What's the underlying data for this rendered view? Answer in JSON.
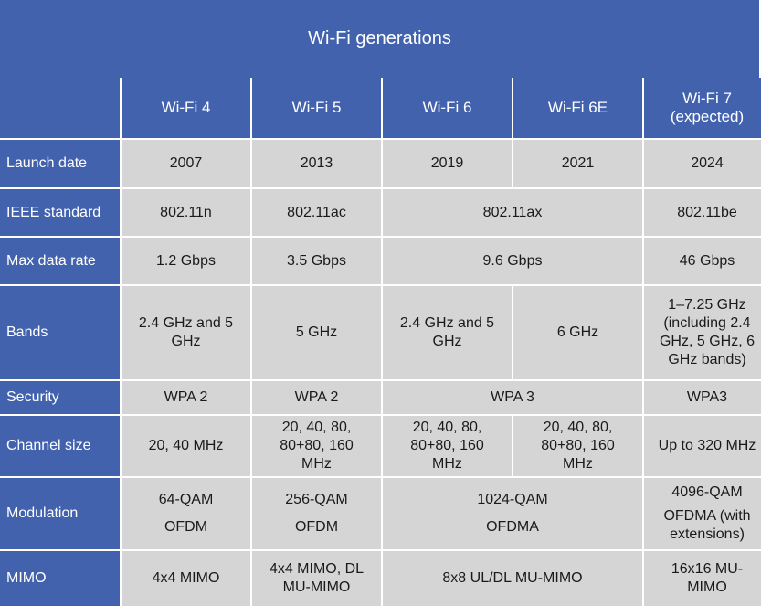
{
  "title": "Wi-Fi generations",
  "columns": [
    "Wi-Fi 4",
    "Wi-Fi 5",
    "Wi-Fi 6",
    "Wi-Fi 6E",
    "Wi-Fi 7 (expected)"
  ],
  "rows": {
    "launch_date": {
      "label": "Launch date",
      "wifi4": "2007",
      "wifi5": "2013",
      "wifi6": "2019",
      "wifi6e": "2021",
      "wifi7": "2024"
    },
    "ieee_standard": {
      "label": "IEEE standard",
      "wifi4": "802.11n",
      "wifi5": "802.11ac",
      "wifi6_6e": "802.11ax",
      "wifi7": "802.11be"
    },
    "max_data_rate": {
      "label": "Max data rate",
      "wifi4": "1.2 Gbps",
      "wifi5": "3.5 Gbps",
      "wifi6_6e": "9.6 Gbps",
      "wifi7": "46 Gbps"
    },
    "bands": {
      "label": "Bands",
      "wifi4": "2.4 GHz and 5 GHz",
      "wifi5": "5 GHz",
      "wifi6": "2.4 GHz and 5 GHz",
      "wifi6e": "6 GHz",
      "wifi7": "1–7.25 GHz (including 2.4 GHz, 5 GHz, 6 GHz bands)"
    },
    "security": {
      "label": "Security",
      "wifi4": "WPA 2",
      "wifi5": "WPA 2",
      "wifi6_6e": "WPA 3",
      "wifi7": "WPA3"
    },
    "channel_size": {
      "label": "Channel size",
      "wifi4": "20, 40 MHz",
      "wifi5": "20, 40, 80, 80+80, 160 MHz",
      "wifi6": "20, 40, 80, 80+80, 160 MHz",
      "wifi6e": "20, 40, 80, 80+80, 160 MHz",
      "wifi7": "Up to 320 MHz"
    },
    "modulation": {
      "label": "Modulation",
      "wifi4": {
        "qam": "64-QAM",
        "scheme": "OFDM"
      },
      "wifi5": {
        "qam": "256-QAM",
        "scheme": "OFDM"
      },
      "wifi6_6e": {
        "qam": "1024-QAM",
        "scheme": "OFDMA"
      },
      "wifi7": {
        "qam": "4096-QAM",
        "scheme": "OFDMA (with extensions)"
      }
    },
    "mimo": {
      "label": "MIMO",
      "wifi4": "4x4 MIMO",
      "wifi5": "4x4 MIMO, DL MU-MIMO",
      "wifi6_6e": "8x8 UL/DL MU-MIMO",
      "wifi7": "16x16 MU-MIMO"
    }
  }
}
